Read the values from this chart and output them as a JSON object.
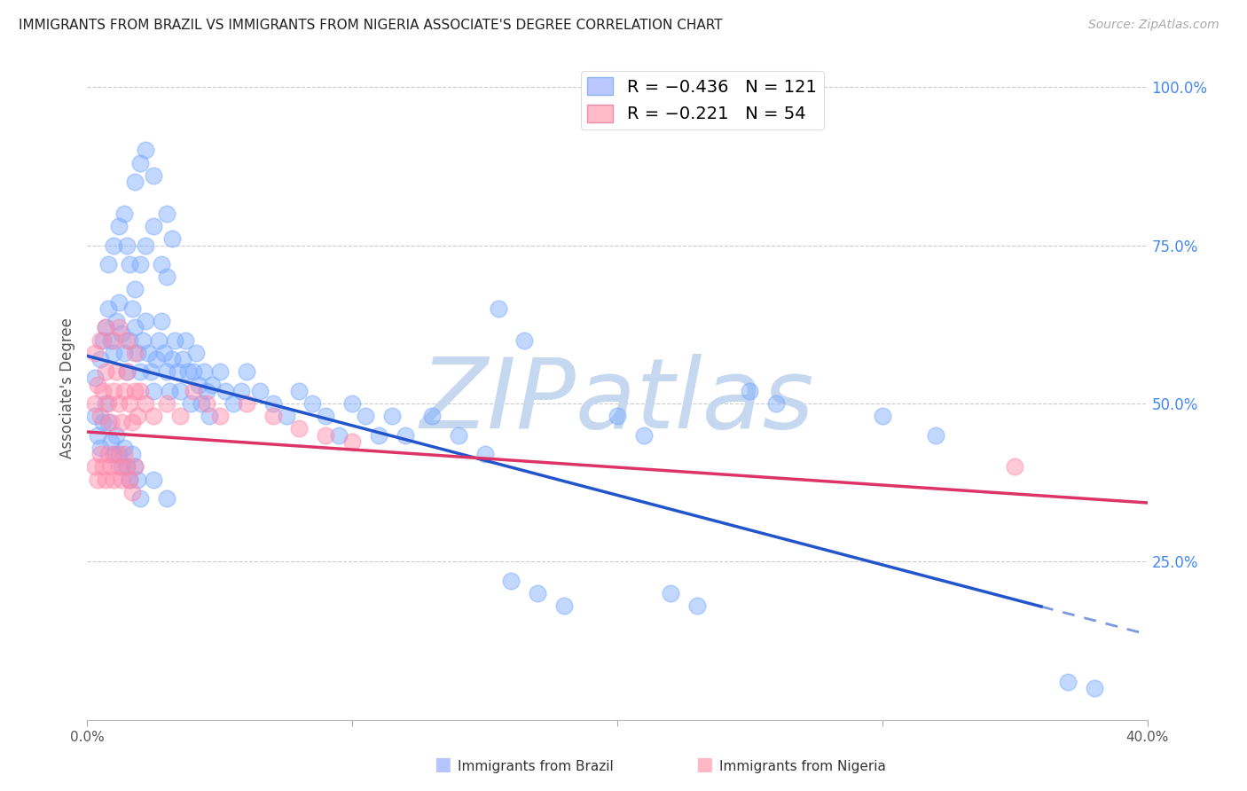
{
  "title": "IMMIGRANTS FROM BRAZIL VS IMMIGRANTS FROM NIGERIA ASSOCIATE'S DEGREE CORRELATION CHART",
  "source": "Source: ZipAtlas.com",
  "ylabel": "Associate's Degree",
  "x_min": 0.0,
  "x_max": 0.4,
  "y_min": 0.0,
  "y_max": 1.05,
  "y_ticks_right": [
    0.25,
    0.5,
    0.75,
    1.0
  ],
  "y_tick_labels_right": [
    "25.0%",
    "50.0%",
    "75.0%",
    "100.0%"
  ],
  "brazil_color": "#7aaaff",
  "nigeria_color": "#ff88aa",
  "brazil_line_color": "#2255cc",
  "nigeria_line_color": "#dd3366",
  "brazil_line_intercept": 0.575,
  "brazil_line_slope": -1.1,
  "nigeria_line_intercept": 0.455,
  "nigeria_line_slope": -0.28,
  "watermark_text": "ZIPatlas",
  "watermark_color": "#c5d8f0",
  "background_color": "#ffffff",
  "right_axis_color": "#4488ee",
  "grid_color": "#cccccc",
  "brazil_dots": [
    [
      0.003,
      0.54
    ],
    [
      0.005,
      0.57
    ],
    [
      0.006,
      0.6
    ],
    [
      0.007,
      0.62
    ],
    [
      0.008,
      0.65
    ],
    [
      0.009,
      0.6
    ],
    [
      0.01,
      0.58
    ],
    [
      0.011,
      0.63
    ],
    [
      0.012,
      0.66
    ],
    [
      0.013,
      0.61
    ],
    [
      0.014,
      0.58
    ],
    [
      0.015,
      0.55
    ],
    [
      0.016,
      0.6
    ],
    [
      0.017,
      0.65
    ],
    [
      0.018,
      0.62
    ],
    [
      0.019,
      0.58
    ],
    [
      0.02,
      0.55
    ],
    [
      0.021,
      0.6
    ],
    [
      0.022,
      0.63
    ],
    [
      0.023,
      0.58
    ],
    [
      0.024,
      0.55
    ],
    [
      0.025,
      0.52
    ],
    [
      0.026,
      0.57
    ],
    [
      0.027,
      0.6
    ],
    [
      0.028,
      0.63
    ],
    [
      0.029,
      0.58
    ],
    [
      0.03,
      0.55
    ],
    [
      0.031,
      0.52
    ],
    [
      0.032,
      0.57
    ],
    [
      0.033,
      0.6
    ],
    [
      0.034,
      0.55
    ],
    [
      0.035,
      0.52
    ],
    [
      0.036,
      0.57
    ],
    [
      0.037,
      0.6
    ],
    [
      0.038,
      0.55
    ],
    [
      0.039,
      0.5
    ],
    [
      0.04,
      0.55
    ],
    [
      0.041,
      0.58
    ],
    [
      0.042,
      0.53
    ],
    [
      0.043,
      0.5
    ],
    [
      0.044,
      0.55
    ],
    [
      0.045,
      0.52
    ],
    [
      0.046,
      0.48
    ],
    [
      0.047,
      0.53
    ],
    [
      0.05,
      0.55
    ],
    [
      0.052,
      0.52
    ],
    [
      0.055,
      0.5
    ],
    [
      0.058,
      0.52
    ],
    [
      0.06,
      0.55
    ],
    [
      0.065,
      0.52
    ],
    [
      0.07,
      0.5
    ],
    [
      0.075,
      0.48
    ],
    [
      0.08,
      0.52
    ],
    [
      0.085,
      0.5
    ],
    [
      0.09,
      0.48
    ],
    [
      0.095,
      0.45
    ],
    [
      0.1,
      0.5
    ],
    [
      0.105,
      0.48
    ],
    [
      0.11,
      0.45
    ],
    [
      0.115,
      0.48
    ],
    [
      0.12,
      0.45
    ],
    [
      0.13,
      0.48
    ],
    [
      0.14,
      0.45
    ],
    [
      0.15,
      0.42
    ],
    [
      0.008,
      0.72
    ],
    [
      0.01,
      0.75
    ],
    [
      0.012,
      0.78
    ],
    [
      0.014,
      0.8
    ],
    [
      0.015,
      0.75
    ],
    [
      0.016,
      0.72
    ],
    [
      0.018,
      0.68
    ],
    [
      0.02,
      0.72
    ],
    [
      0.022,
      0.75
    ],
    [
      0.025,
      0.78
    ],
    [
      0.028,
      0.72
    ],
    [
      0.03,
      0.7
    ],
    [
      0.018,
      0.85
    ],
    [
      0.02,
      0.88
    ],
    [
      0.022,
      0.9
    ],
    [
      0.025,
      0.86
    ],
    [
      0.03,
      0.8
    ],
    [
      0.032,
      0.76
    ],
    [
      0.003,
      0.48
    ],
    [
      0.004,
      0.45
    ],
    [
      0.005,
      0.43
    ],
    [
      0.006,
      0.47
    ],
    [
      0.007,
      0.5
    ],
    [
      0.008,
      0.47
    ],
    [
      0.009,
      0.44
    ],
    [
      0.01,
      0.42
    ],
    [
      0.011,
      0.45
    ],
    [
      0.012,
      0.42
    ],
    [
      0.013,
      0.4
    ],
    [
      0.014,
      0.43
    ],
    [
      0.015,
      0.4
    ],
    [
      0.016,
      0.38
    ],
    [
      0.017,
      0.42
    ],
    [
      0.018,
      0.4
    ],
    [
      0.019,
      0.38
    ],
    [
      0.02,
      0.35
    ],
    [
      0.025,
      0.38
    ],
    [
      0.03,
      0.35
    ],
    [
      0.16,
      0.22
    ],
    [
      0.17,
      0.2
    ],
    [
      0.18,
      0.18
    ],
    [
      0.2,
      0.48
    ],
    [
      0.21,
      0.45
    ],
    [
      0.25,
      0.52
    ],
    [
      0.26,
      0.5
    ],
    [
      0.3,
      0.48
    ],
    [
      0.32,
      0.45
    ],
    [
      0.155,
      0.65
    ],
    [
      0.165,
      0.6
    ],
    [
      0.22,
      0.2
    ],
    [
      0.23,
      0.18
    ],
    [
      0.38,
      0.05
    ],
    [
      0.37,
      0.06
    ]
  ],
  "nigeria_dots": [
    [
      0.003,
      0.5
    ],
    [
      0.004,
      0.53
    ],
    [
      0.005,
      0.48
    ],
    [
      0.006,
      0.52
    ],
    [
      0.007,
      0.55
    ],
    [
      0.008,
      0.5
    ],
    [
      0.009,
      0.47
    ],
    [
      0.01,
      0.52
    ],
    [
      0.011,
      0.55
    ],
    [
      0.012,
      0.5
    ],
    [
      0.013,
      0.47
    ],
    [
      0.014,
      0.52
    ],
    [
      0.015,
      0.55
    ],
    [
      0.016,
      0.5
    ],
    [
      0.017,
      0.47
    ],
    [
      0.018,
      0.52
    ],
    [
      0.019,
      0.48
    ],
    [
      0.02,
      0.52
    ],
    [
      0.022,
      0.5
    ],
    [
      0.025,
      0.48
    ],
    [
      0.003,
      0.4
    ],
    [
      0.004,
      0.38
    ],
    [
      0.005,
      0.42
    ],
    [
      0.006,
      0.4
    ],
    [
      0.007,
      0.38
    ],
    [
      0.008,
      0.42
    ],
    [
      0.009,
      0.4
    ],
    [
      0.01,
      0.38
    ],
    [
      0.011,
      0.42
    ],
    [
      0.012,
      0.4
    ],
    [
      0.013,
      0.38
    ],
    [
      0.014,
      0.42
    ],
    [
      0.015,
      0.4
    ],
    [
      0.016,
      0.38
    ],
    [
      0.017,
      0.36
    ],
    [
      0.018,
      0.4
    ],
    [
      0.003,
      0.58
    ],
    [
      0.005,
      0.6
    ],
    [
      0.007,
      0.62
    ],
    [
      0.01,
      0.6
    ],
    [
      0.012,
      0.62
    ],
    [
      0.015,
      0.6
    ],
    [
      0.018,
      0.58
    ],
    [
      0.03,
      0.5
    ],
    [
      0.035,
      0.48
    ],
    [
      0.04,
      0.52
    ],
    [
      0.045,
      0.5
    ],
    [
      0.05,
      0.48
    ],
    [
      0.06,
      0.5
    ],
    [
      0.07,
      0.48
    ],
    [
      0.08,
      0.46
    ],
    [
      0.09,
      0.45
    ],
    [
      0.1,
      0.44
    ],
    [
      0.35,
      0.4
    ]
  ]
}
